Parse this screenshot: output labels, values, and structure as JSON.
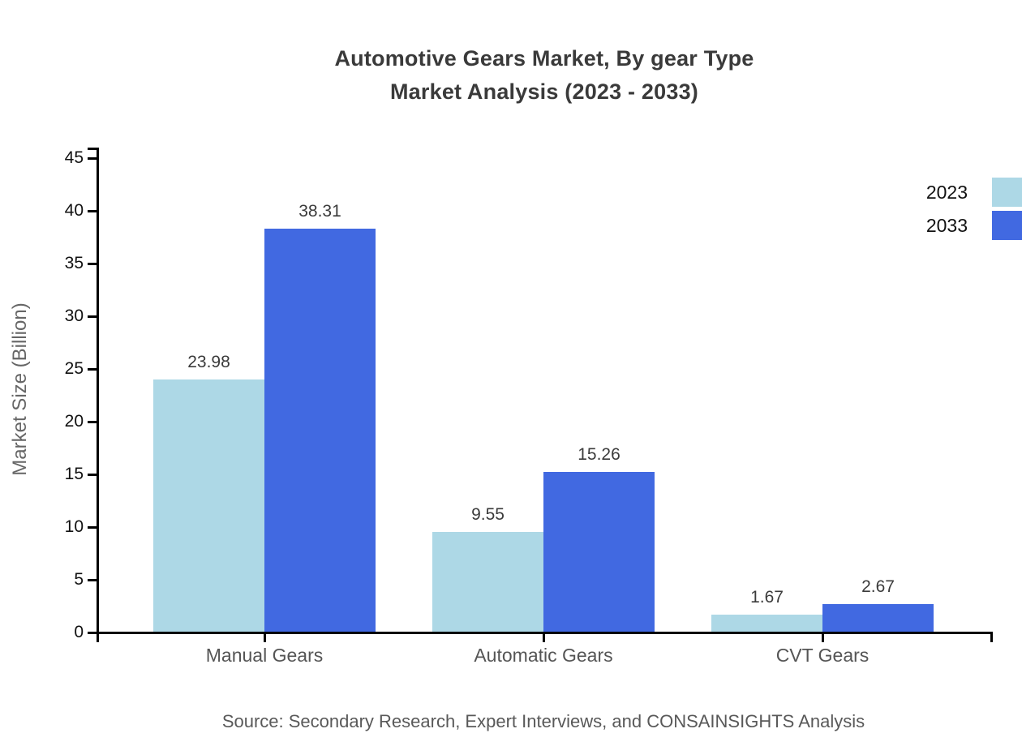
{
  "chart_data": {
    "type": "bar",
    "title_lines": [
      "Automotive Gears Market, By gear Type",
      "Market Analysis (2023 - 2033)"
    ],
    "categories": [
      "Manual Gears",
      "Automatic Gears",
      "CVT Gears"
    ],
    "series": [
      {
        "name": "2023",
        "color": "#ADD8E6",
        "values": [
          23.98,
          9.55,
          1.67
        ]
      },
      {
        "name": "2033",
        "color": "#4169E1",
        "values": [
          38.31,
          15.26,
          2.67
        ]
      }
    ],
    "xlabel": "",
    "ylabel": "Market Size (Billion)",
    "ylim": [
      0,
      45
    ],
    "ytick_step": 5,
    "yticks": [
      0,
      5,
      10,
      15,
      20,
      25,
      30,
      35,
      40,
      45
    ],
    "grid": false,
    "legend_position": "top-right",
    "value_label_decimals": 2,
    "source": "Source: Secondary Research, Expert Interviews, and CONSAINSIGHTS Analysis"
  }
}
